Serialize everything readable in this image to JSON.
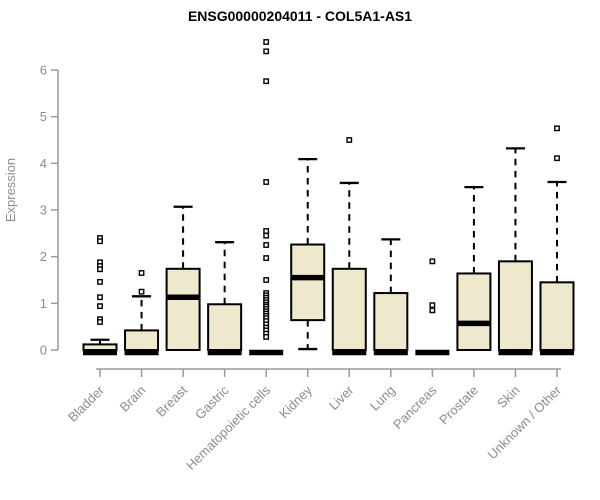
{
  "colors": {
    "box_fill": "#EEE8CD",
    "box_border": "#000000",
    "axis_line": "#9a9a9a",
    "axis_text": "#8c8c8c",
    "title_color": "#000000",
    "background": "#ffffff"
  },
  "chart_data": {
    "type": "box",
    "title": "ENSG00000204011 - COL5A1-AS1",
    "xlabel": "",
    "ylabel": "Expression",
    "ylim": [
      0,
      6.7
    ],
    "yticks": [
      0,
      1,
      2,
      3,
      4,
      5,
      6
    ],
    "grid": false,
    "legend": "none",
    "categories": [
      "Bladder",
      "Brain",
      "Breast",
      "Gastric",
      "Hematopoietic cells",
      "Kidney",
      "Liver",
      "Lung",
      "Pancreas",
      "Prostate",
      "Skin",
      "Unknown / Other"
    ],
    "boxes": [
      {
        "category": "Bladder",
        "whisker_low": 0,
        "q1": 0,
        "median": 0.04,
        "q3": 0.12,
        "whisker_high": 0.22,
        "outliers": [
          2.4,
          2.33,
          1.88,
          1.8,
          1.73,
          1.46,
          1.13,
          0.94,
          0.66,
          0.6
        ]
      },
      {
        "category": "Brain",
        "whisker_low": 0,
        "q1": 0,
        "median": 0.04,
        "q3": 0.42,
        "whisker_high": 1.15,
        "outliers": [
          1.65,
          1.25
        ]
      },
      {
        "category": "Breast",
        "whisker_low": 0,
        "q1": 0,
        "median": 1.13,
        "q3": 1.74,
        "whisker_high": 3.07,
        "outliers": []
      },
      {
        "category": "Gastric",
        "whisker_low": 0,
        "q1": 0,
        "median": 0.04,
        "q3": 0.98,
        "whisker_high": 2.31,
        "outliers": []
      },
      {
        "category": "Hematopoietic cells",
        "whisker_low": 0.02,
        "q1": 0.02,
        "median": 0.02,
        "q3": 0.02,
        "whisker_high": 0.02,
        "outliers": [
          6.6,
          6.4,
          5.76,
          3.6,
          2.55,
          2.45,
          2.25,
          1.97,
          1.5,
          1.22,
          1.17,
          1.12,
          1.07,
          1.02,
          0.97,
          0.93,
          0.88,
          0.83,
          0.78,
          0.73,
          0.68,
          0.62,
          0.55,
          0.48,
          0.42,
          0.35,
          0.28
        ]
      },
      {
        "category": "Kidney",
        "whisker_low": 0.02,
        "q1": 0.64,
        "median": 1.55,
        "q3": 2.26,
        "whisker_high": 4.09,
        "outliers": []
      },
      {
        "category": "Liver",
        "whisker_low": 0,
        "q1": 0,
        "median": 0.04,
        "q3": 1.74,
        "whisker_high": 3.58,
        "outliers": [
          4.5
        ]
      },
      {
        "category": "Lung",
        "whisker_low": 0,
        "q1": 0,
        "median": 0.04,
        "q3": 1.22,
        "whisker_high": 2.37,
        "outliers": []
      },
      {
        "category": "Pancreas",
        "whisker_low": 0.02,
        "q1": 0.02,
        "median": 0.02,
        "q3": 0.02,
        "whisker_high": 0.02,
        "outliers": [
          1.9,
          0.96,
          0.85
        ]
      },
      {
        "category": "Prostate",
        "whisker_low": 0,
        "q1": 0,
        "median": 0.57,
        "q3": 1.64,
        "whisker_high": 3.49,
        "outliers": []
      },
      {
        "category": "Skin",
        "whisker_low": 0,
        "q1": 0,
        "median": 0.04,
        "q3": 1.9,
        "whisker_high": 4.32,
        "outliers": []
      },
      {
        "category": "Unknown / Other",
        "whisker_low": 0,
        "q1": 0,
        "median": 0.04,
        "q3": 1.45,
        "whisker_high": 3.6,
        "outliers": [
          4.75,
          4.11
        ]
      }
    ]
  }
}
